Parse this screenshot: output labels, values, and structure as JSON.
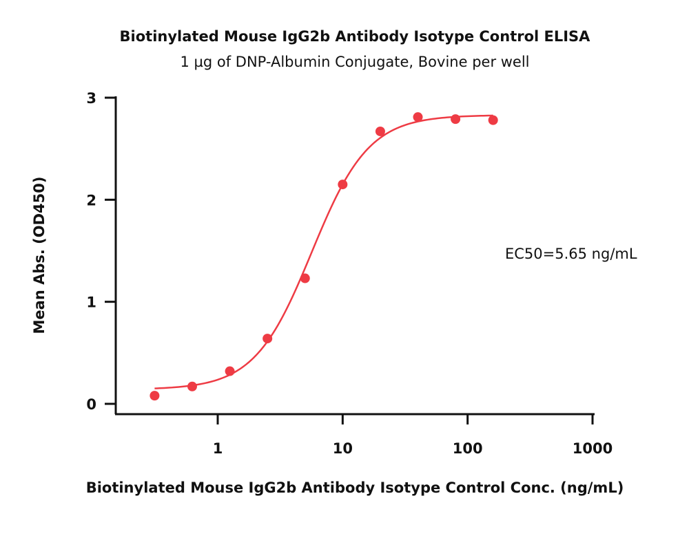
{
  "chart_data": {
    "type": "scatter",
    "title": "Biotinylated Mouse IgG2b Antibody Isotype Control ELISA",
    "subtitle": "1 µg of DNP-Albumin Conjugate, Bovine per well",
    "xlabel": "Biotinylated Mouse IgG2b Antibody Isotype Control Conc. (ng/mL)",
    "ylabel": "Mean Abs. (OD450)",
    "x_scale": "log",
    "xlim": [
      0.15,
      1000
    ],
    "ylim": [
      0,
      3
    ],
    "x_ticks": [
      {
        "value": 1,
        "label": "1"
      },
      {
        "value": 10,
        "label": "10"
      },
      {
        "value": 100,
        "label": "100"
      },
      {
        "value": 1000,
        "label": "1000"
      }
    ],
    "y_ticks": [
      {
        "value": 0,
        "label": "0"
      },
      {
        "value": 1,
        "label": "1"
      },
      {
        "value": 2,
        "label": "2"
      },
      {
        "value": 3,
        "label": "3"
      }
    ],
    "grid": false,
    "series": [
      {
        "color": "#ee3b44",
        "points": [
          {
            "x": 0.3125,
            "y": 0.08
          },
          {
            "x": 0.625,
            "y": 0.17
          },
          {
            "x": 1.25,
            "y": 0.32
          },
          {
            "x": 2.5,
            "y": 0.64
          },
          {
            "x": 5,
            "y": 1.23
          },
          {
            "x": 10,
            "y": 2.15
          },
          {
            "x": 20,
            "y": 2.67
          },
          {
            "x": 40,
            "y": 2.81
          },
          {
            "x": 80,
            "y": 2.79
          },
          {
            "x": 160,
            "y": 2.78
          }
        ],
        "fit": {
          "model": "4PL",
          "bottom": 0.14,
          "top": 2.83,
          "ec50": 5.65,
          "hill": 1.9,
          "x_range": [
            0.3125,
            160
          ]
        }
      }
    ],
    "annotations": [
      {
        "text": "EC50=5.65 ng/mL"
      }
    ]
  }
}
